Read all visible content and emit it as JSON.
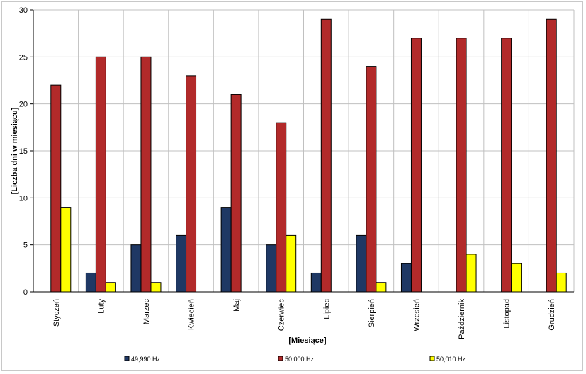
{
  "chart_data": {
    "type": "bar",
    "title": "",
    "xlabel": "[Miesiące]",
    "ylabel": "[Liczba dni w miesiącu]",
    "ylim": [
      0,
      30
    ],
    "yticks": [
      0,
      5,
      10,
      15,
      20,
      25,
      30
    ],
    "grid": true,
    "legend_position": "bottom",
    "categories": [
      "Styczeń",
      "Luty",
      "Marzec",
      "Kwiecień",
      "Maj",
      "Czerwiec",
      "Lipiec",
      "Sierpień",
      "Wrzesień",
      "Październik",
      "Listopad",
      "Grudzień"
    ],
    "series": [
      {
        "name": "49,990 Hz",
        "color": "#1f3864",
        "values": [
          0,
          2,
          5,
          6,
          9,
          5,
          2,
          6,
          3,
          0,
          0,
          0
        ]
      },
      {
        "name": "50,000 Hz",
        "color": "#b22a2a",
        "values": [
          22,
          25,
          25,
          23,
          21,
          18,
          29,
          24,
          27,
          27,
          27,
          29
        ]
      },
      {
        "name": "50,010 Hz",
        "color": "#ffff00",
        "values": [
          9,
          1,
          1,
          0,
          0,
          6,
          0,
          1,
          0,
          4,
          3,
          2
        ]
      }
    ]
  }
}
